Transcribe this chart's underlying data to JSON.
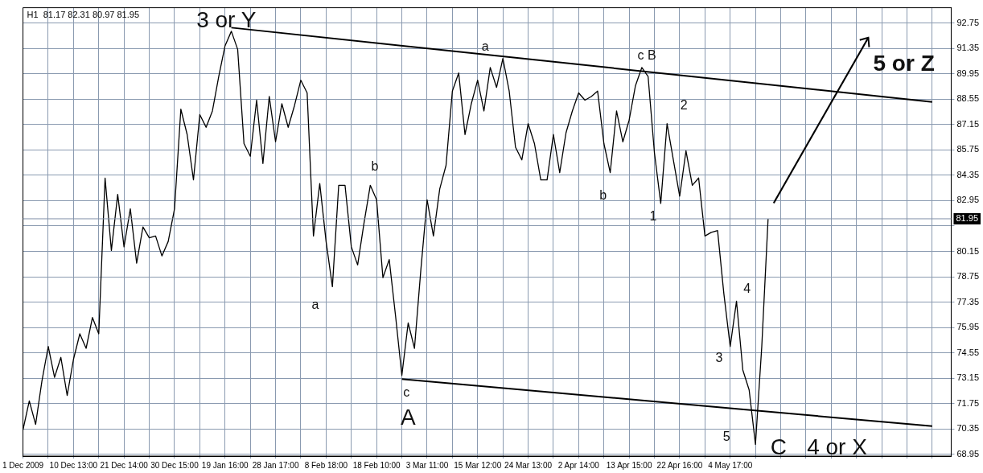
{
  "chart_data": {
    "type": "line",
    "title": "H1  81.17 82.31 80.97 81.95",
    "categories": [
      "1 Dec 2009",
      null,
      null,
      null,
      null,
      null,
      null,
      null,
      "10 Dec 13:00",
      null,
      null,
      null,
      null,
      null,
      null,
      null,
      "21 Dec 14:00",
      null,
      null,
      null,
      null,
      null,
      null,
      null,
      "30 Dec 15:00",
      null,
      null,
      null,
      null,
      null,
      null,
      null,
      "19 Jan 16:00",
      null,
      null,
      null,
      null,
      null,
      null,
      null,
      "28 Jan 17:00",
      null,
      null,
      null,
      null,
      null,
      null,
      null,
      "8 Feb 18:00",
      null,
      null,
      null,
      null,
      null,
      null,
      null,
      "18 Feb 10:00",
      null,
      null,
      null,
      null,
      null,
      null,
      null,
      "3 Mar 11:00",
      null,
      null,
      null,
      null,
      null,
      null,
      null,
      "15 Mar 12:00",
      null,
      null,
      null,
      null,
      null,
      null,
      null,
      "24 Mar 13:00",
      null,
      null,
      null,
      null,
      null,
      null,
      null,
      "2 Apr 14:00",
      null,
      null,
      null,
      null,
      null,
      null,
      null,
      "13 Apr 15:00",
      null,
      null,
      null,
      null,
      null,
      null,
      null,
      "22 Apr 16:00",
      null,
      null,
      null,
      null,
      null,
      null,
      null,
      "4 May 17:00",
      null,
      null,
      null,
      null,
      null,
      null,
      null,
      null,
      null,
      null,
      null,
      null,
      null,
      null,
      null,
      null,
      null,
      null,
      null,
      null,
      null,
      null,
      null,
      null,
      null,
      null,
      null,
      null,
      null,
      null,
      null,
      null,
      null,
      null,
      null
    ],
    "series": [
      {
        "color": "#000000",
        "values": [
          70.3,
          71.9,
          70.6,
          73.0,
          74.9,
          73.2,
          74.3,
          72.2,
          74.2,
          75.6,
          74.8,
          76.5,
          75.6,
          84.2,
          80.2,
          83.3,
          80.4,
          82.5,
          79.5,
          81.5,
          80.9,
          81.0,
          79.9,
          80.7,
          82.5,
          88.0,
          86.6,
          84.1,
          87.7,
          87.0,
          87.9,
          89.8,
          91.5,
          92.3,
          91.3,
          86.1,
          85.4,
          88.5,
          85.0,
          88.7,
          86.2,
          88.3,
          87.0,
          88.2,
          89.6,
          88.9,
          81.0,
          83.9,
          80.7,
          78.2,
          83.8,
          83.8,
          80.4,
          79.4,
          81.7,
          83.8,
          83.0,
          78.7,
          79.7,
          76.6,
          73.3,
          76.2,
          74.8,
          79.1,
          83.0,
          81.0,
          83.6,
          84.9,
          89.0,
          90.0,
          86.6,
          88.3,
          89.6,
          87.9,
          90.3,
          89.2,
          90.8,
          89.0,
          85.9,
          85.2,
          87.2,
          86.1,
          84.1,
          84.1,
          86.6,
          84.5,
          86.7,
          87.9,
          88.9,
          88.5,
          88.7,
          89.0,
          86.1,
          84.5,
          87.9,
          86.2,
          87.4,
          89.3,
          90.3,
          89.8,
          85.6,
          82.8,
          87.2,
          85.2,
          83.2,
          85.7,
          83.8,
          84.2,
          81.0,
          81.2,
          81.3,
          77.8,
          74.9,
          77.4,
          73.6,
          72.5,
          69.5,
          74.9,
          81.95,
          null,
          null,
          null,
          null,
          null,
          null,
          null,
          null,
          null,
          null,
          null,
          null,
          null,
          null,
          null,
          null,
          null,
          null,
          null,
          null,
          null,
          null,
          null,
          null,
          null,
          null,
          null,
          null,
          null
        ]
      },
      {
        "color": "#000000",
        "values": [
          null,
          null,
          null,
          null,
          null,
          null,
          null,
          null,
          null,
          null,
          null,
          null,
          null,
          null,
          null,
          null,
          null,
          null,
          null,
          null,
          null,
          null,
          null,
          null,
          null,
          null,
          null,
          null,
          null,
          null,
          null,
          null,
          null,
          92.5,
          null,
          null,
          null,
          null,
          null,
          null,
          null,
          null,
          null,
          null,
          null,
          null,
          null,
          null,
          null,
          null,
          null,
          null,
          null,
          null,
          null,
          null,
          null,
          null,
          null,
          null,
          null,
          null,
          null,
          null,
          null,
          null,
          null,
          null,
          null,
          null,
          null,
          null,
          null,
          null,
          null,
          null,
          null,
          null,
          null,
          null,
          null,
          null,
          null,
          null,
          null,
          null,
          null,
          null,
          null,
          null,
          null,
          null,
          null,
          null,
          null,
          null,
          null,
          null,
          null,
          null,
          null,
          null,
          null,
          null,
          null,
          null,
          null,
          null,
          null,
          null,
          null,
          null,
          null,
          null,
          null,
          null,
          null,
          null,
          null,
          null,
          null,
          null,
          null,
          null,
          null,
          null,
          null,
          null,
          null,
          null,
          null,
          null,
          null,
          null,
          null,
          null,
          null,
          null,
          null,
          null,
          null,
          null,
          null,
          null,
          88.4,
          null,
          null,
          null
        ]
      },
      {
        "color": "#000000",
        "values": [
          null,
          null,
          null,
          null,
          null,
          null,
          null,
          null,
          null,
          null,
          null,
          null,
          null,
          null,
          null,
          null,
          null,
          null,
          null,
          null,
          null,
          null,
          null,
          null,
          null,
          null,
          null,
          null,
          null,
          null,
          null,
          null,
          null,
          null,
          null,
          null,
          null,
          null,
          null,
          null,
          null,
          null,
          null,
          null,
          null,
          null,
          null,
          null,
          null,
          null,
          null,
          null,
          null,
          null,
          null,
          null,
          null,
          null,
          null,
          null,
          73.1,
          null,
          null,
          null,
          null,
          null,
          null,
          null,
          null,
          null,
          null,
          null,
          null,
          null,
          null,
          null,
          null,
          null,
          null,
          null,
          null,
          null,
          null,
          null,
          null,
          null,
          null,
          null,
          null,
          null,
          null,
          null,
          null,
          null,
          null,
          null,
          null,
          null,
          null,
          null,
          null,
          null,
          null,
          null,
          null,
          null,
          null,
          null,
          null,
          null,
          null,
          null,
          null,
          null,
          null,
          null,
          null,
          null,
          null,
          null,
          null,
          null,
          null,
          null,
          null,
          null,
          null,
          null,
          null,
          null,
          null,
          null,
          null,
          null,
          null,
          null,
          null,
          null,
          null,
          null,
          null,
          null,
          null,
          null,
          70.5,
          null,
          null,
          null
        ]
      }
    ],
    "annotations": [
      "3 or Y",
      "5 or Z",
      "A",
      "C",
      "4 or X",
      "a",
      "c B",
      "2",
      "b",
      "b",
      "1",
      "a",
      "4",
      "3",
      "c",
      "5"
    ],
    "ylim": [
      68.85,
      93.6
    ],
    "yticks": [
      92.75,
      91.35,
      89.95,
      88.55,
      87.15,
      85.75,
      84.35,
      82.95,
      {
        "value": 81.55,
        "label": null
      },
      80.15,
      78.75,
      77.35,
      75.95,
      74.55,
      73.15,
      71.75,
      70.35,
      68.95
    ],
    "ref_lines": [
      {
        "axis": "y",
        "value": 81.95,
        "label": "81.95",
        "color": "#8090a8"
      }
    ],
    "grid": true,
    "legend": false,
    "marker": "none",
    "line_style": "solid"
  }
}
